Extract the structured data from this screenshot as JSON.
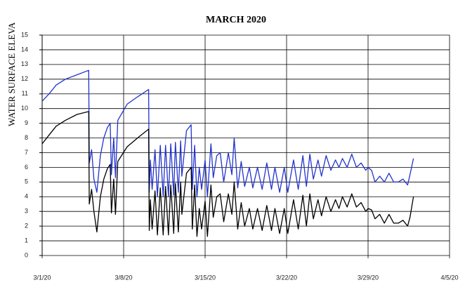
{
  "chart_data": {
    "type": "line",
    "title": "MARCH 2020",
    "y_label": "WATER SURFACE ELEVA",
    "x": [
      0,
      0.6,
      1.2,
      2,
      3,
      4.0,
      4.05,
      4.25,
      4.45,
      4.7,
      5.0,
      5.3,
      5.6,
      5.85,
      5.95,
      6.15,
      6.3,
      6.5,
      7.3,
      8.2,
      9.15,
      9.2,
      9.3,
      9.45,
      9.7,
      9.9,
      10.15,
      10.4,
      10.6,
      10.85,
      11.05,
      11.3,
      11.45,
      11.7,
      11.9,
      12.0,
      12.4,
      12.8,
      12.9,
      13.1,
      13.3,
      13.5,
      13.7,
      14.0,
      14.2,
      14.5,
      14.7,
      15.0,
      15.3,
      15.6,
      16.0,
      16.3,
      16.5,
      16.8,
      17.1,
      17.4,
      17.8,
      18.1,
      18.5,
      18.9,
      19.3,
      19.7,
      20.0,
      20.4,
      20.8,
      21.1,
      21.6,
      22.0,
      22.4,
      22.7,
      23.0,
      23.3,
      23.7,
      24.0,
      24.4,
      24.8,
      25.2,
      25.5,
      25.8,
      26.2,
      26.6,
      27.0,
      27.4,
      27.8,
      28.0,
      28.3,
      28.6,
      29.0,
      29.4,
      29.8,
      30.2,
      30.6,
      31.0,
      31.4,
      31.6,
      31.9
    ],
    "series": [
      {
        "color": "#2233cc",
        "values": [
          10.5,
          11.0,
          11.6,
          12.0,
          12.3,
          12.6,
          6.3,
          7.2,
          5.2,
          4.3,
          6.8,
          8.0,
          8.7,
          9.0,
          5.5,
          8.0,
          5.3,
          9.2,
          10.3,
          10.8,
          11.3,
          4.3,
          6.5,
          4.5,
          7.2,
          4.0,
          7.5,
          4.0,
          7.5,
          4.0,
          7.6,
          4.1,
          7.7,
          4.3,
          7.8,
          5.4,
          8.5,
          8.9,
          4.5,
          7.5,
          4.0,
          6.0,
          4.5,
          6.5,
          4.0,
          7.6,
          5.3,
          6.8,
          7.0,
          5.0,
          7.0,
          5.5,
          8.0,
          4.6,
          6.4,
          4.7,
          6.0,
          4.6,
          6.0,
          4.5,
          6.3,
          4.5,
          6.0,
          4.3,
          6.0,
          4.3,
          6.5,
          4.5,
          6.8,
          4.7,
          6.9,
          5.2,
          6.5,
          5.4,
          6.8,
          5.8,
          6.5,
          6.0,
          6.6,
          6.0,
          6.9,
          6.0,
          6.3,
          5.8,
          6.0,
          5.8,
          5.0,
          5.4,
          5.0,
          5.6,
          5.0,
          5.0,
          5.2,
          4.8,
          5.5,
          6.6
        ]
      },
      {
        "color": "#000000",
        "values": [
          7.6,
          8.2,
          8.8,
          9.2,
          9.6,
          9.8,
          3.5,
          4.5,
          3.0,
          1.6,
          4.0,
          5.2,
          5.9,
          6.2,
          2.9,
          5.2,
          2.8,
          6.4,
          7.4,
          8.0,
          8.6,
          1.7,
          3.8,
          1.8,
          4.4,
          1.4,
          4.6,
          1.4,
          4.7,
          1.4,
          4.8,
          1.5,
          4.9,
          1.6,
          5.0,
          2.8,
          5.6,
          6.0,
          1.8,
          4.8,
          1.3,
          3.2,
          1.8,
          3.7,
          1.3,
          4.8,
          2.6,
          4.0,
          4.2,
          2.3,
          4.2,
          2.8,
          5.0,
          1.8,
          3.6,
          2.0,
          3.2,
          1.8,
          3.2,
          1.7,
          3.4,
          1.7,
          3.2,
          1.5,
          3.2,
          1.5,
          3.8,
          1.8,
          4.1,
          2.0,
          4.2,
          2.5,
          3.8,
          2.7,
          4.0,
          3.0,
          3.8,
          3.2,
          4.0,
          3.3,
          4.2,
          3.3,
          3.6,
          3.0,
          3.2,
          3.1,
          2.5,
          2.8,
          2.2,
          2.8,
          2.2,
          2.2,
          2.4,
          2.0,
          2.6,
          4.0
        ]
      }
    ],
    "xlim": [
      0,
      35
    ],
    "xticks": [
      {
        "value": 0,
        "label": "3/1/20"
      },
      {
        "value": 7,
        "label": "3/8/20"
      },
      {
        "value": 14,
        "label": "3/15/20"
      },
      {
        "value": 21,
        "label": "3/22/20"
      },
      {
        "value": 28,
        "label": "3/29/20"
      },
      {
        "value": 35,
        "label": "4/5/20"
      }
    ],
    "ylim": [
      0,
      15
    ],
    "yticks": [
      0,
      1,
      2,
      3,
      4,
      5,
      6,
      7,
      8,
      9,
      10,
      11,
      12,
      13,
      14,
      15
    ],
    "grid": true
  }
}
